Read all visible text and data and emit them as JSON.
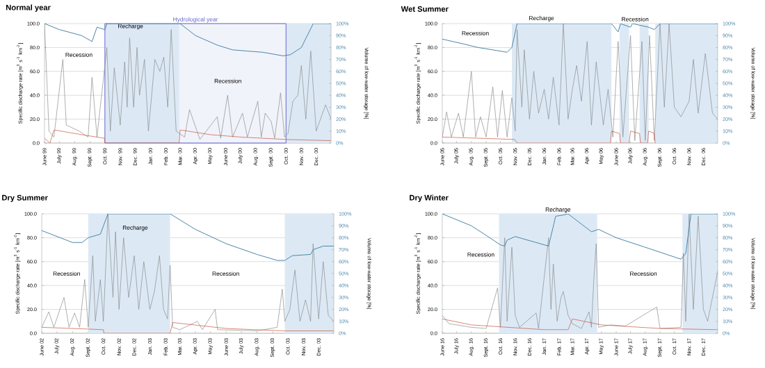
{
  "chart_data": [
    {
      "type": "line",
      "title": "Normal year",
      "ylabel": "Specific discharge rate [m$^{3}$ s$^{-1}$ km$^{-2}$]",
      "y2label": "Volume of low-water storage [%]",
      "xlim": [
        "1999-06-01",
        "2000-12-31"
      ],
      "xticks": [
        {
          "value": "1999-06-01",
          "label": "June 99"
        },
        {
          "value": "1999-07-01",
          "label": "July 99"
        },
        {
          "value": "1999-08-01",
          "label": "Aug. 99"
        },
        {
          "value": "1999-09-01",
          "label": "Sept. 99"
        },
        {
          "value": "1999-10-01",
          "label": "Oct. 99"
        },
        {
          "value": "1999-11-01",
          "label": "Nov. 99"
        },
        {
          "value": "1999-12-01",
          "label": "Dec. 99"
        },
        {
          "value": "2000-01-01",
          "label": "Jan. 00"
        },
        {
          "value": "2000-02-01",
          "label": "Feb. 00"
        },
        {
          "value": "2000-03-01",
          "label": "Mar. 00"
        },
        {
          "value": "2000-04-01",
          "label": "Apr. 00"
        },
        {
          "value": "2000-05-01",
          "label": "May 00"
        },
        {
          "value": "2000-06-01",
          "label": "June 00"
        },
        {
          "value": "2000-07-01",
          "label": "July 00"
        },
        {
          "value": "2000-08-01",
          "label": "Aug. 00"
        },
        {
          "value": "2000-09-01",
          "label": "Sept. 00"
        },
        {
          "value": "2000-10-01",
          "label": "Oct. 00"
        },
        {
          "value": "2000-11-01",
          "label": "Nov. 00"
        },
        {
          "value": "2000-12-01",
          "label": "Dec. 00"
        }
      ],
      "ylim": [
        0,
        100
      ],
      "yticks": [
        {
          "value": 0,
          "label": "0.0"
        },
        {
          "value": 20,
          "label": "20.0"
        },
        {
          "value": 40,
          "label": "40.0"
        },
        {
          "value": 60,
          "label": "60.0"
        },
        {
          "value": 80,
          "label": "80.0"
        },
        {
          "value": 100,
          "label": "100.0"
        }
      ],
      "y2lim": [
        0,
        100
      ],
      "y2ticks": [
        {
          "value": 0,
          "label": "0%"
        },
        {
          "value": 10,
          "label": "10%"
        },
        {
          "value": 20,
          "label": "20%"
        },
        {
          "value": 30,
          "label": "30%"
        },
        {
          "value": 40,
          "label": "40%"
        },
        {
          "value": 50,
          "label": "50%"
        },
        {
          "value": 60,
          "label": "60%"
        },
        {
          "value": 70,
          "label": "70%"
        },
        {
          "value": 80,
          "label": "80%"
        },
        {
          "value": 90,
          "label": "90%"
        },
        {
          "value": 100,
          "label": "100%"
        }
      ],
      "grid": "y",
      "bands": [
        {
          "axis": "x",
          "from": "1999-10-01",
          "to": "2000-02-28",
          "color": "#dce9f5"
        },
        {
          "axis": "x",
          "from": "2000-10-01",
          "to": "2000-12-31",
          "color": "#dce9f5"
        },
        {
          "axis": "x",
          "from": "1999-10-01",
          "to": "2000-10-01",
          "label": "Hydrological year",
          "color": "#f1f3fa"
        }
      ],
      "annotations": [
        "Recession",
        "Recharge",
        "Recession"
      ],
      "series": [
        {
          "color": "#8c8c8c",
          "x": [
            "1999-06-01",
            "1999-06-10",
            "1999-06-20",
            "1999-07-08",
            "1999-07-15",
            "1999-08-10",
            "1999-08-28",
            "1999-09-05",
            "1999-09-15",
            "1999-10-05",
            "1999-10-12",
            "1999-10-20",
            "1999-11-01",
            "1999-11-10",
            "1999-11-15",
            "1999-11-20",
            "1999-11-28",
            "1999-12-05",
            "1999-12-10",
            "1999-12-20",
            "1999-12-28",
            "2000-01-10",
            "2000-01-20",
            "2000-01-28",
            "2000-02-05",
            "2000-02-12",
            "2000-02-22",
            "2000-03-10",
            "2000-03-20",
            "2000-04-10",
            "2000-05-15",
            "2000-05-22",
            "2000-06-05",
            "2000-06-15",
            "2000-07-05",
            "2000-07-15",
            "2000-08-05",
            "2000-08-12",
            "2000-08-20",
            "2000-09-01",
            "2000-09-08",
            "2000-09-20",
            "2000-09-28",
            "2000-10-05",
            "2000-10-15",
            "2000-10-25",
            "2000-11-01",
            "2000-11-10",
            "2000-11-20",
            "2000-12-01",
            "2000-12-20",
            "2000-12-31"
          ],
          "values": [
            100,
            10,
            5,
            70,
            15,
            10,
            5,
            55,
            5,
            80,
            10,
            63,
            15,
            68,
            30,
            88,
            30,
            80,
            40,
            70,
            10,
            70,
            60,
            72,
            30,
            95,
            10,
            5,
            28,
            3,
            22,
            4,
            40,
            5,
            25,
            5,
            35,
            5,
            25,
            18,
            4,
            42,
            5,
            8,
            35,
            40,
            65,
            20,
            77,
            10,
            32,
            20
          ]
        },
        {
          "color": "#c8553d",
          "x": [
            "1999-06-01",
            "1999-06-12",
            "1999-06-20",
            "1999-08-15",
            "1999-09-30",
            "1999-10-01",
            "2000-02-28",
            "2000-03-01",
            "2000-05-01",
            "2000-07-01",
            "2000-09-30",
            "2000-12-31"
          ],
          "values": [
            4,
            0,
            11,
            7,
            4,
            0,
            0,
            11,
            7,
            5,
            3,
            2
          ]
        },
        {
          "color": "#4a86a8",
          "axis": "y2",
          "x": [
            "1999-06-01",
            "1999-07-01",
            "1999-08-15",
            "1999-09-05",
            "1999-09-15",
            "1999-10-01",
            "1999-10-05",
            "2000-03-01",
            "2000-04-01",
            "2000-05-15",
            "2000-06-15",
            "2000-07-15",
            "2000-08-15",
            "2000-09-25",
            "2000-10-10",
            "2000-11-01",
            "2000-11-25",
            "2000-12-31"
          ],
          "values": [
            100,
            95,
            90,
            85,
            97,
            95,
            100,
            100,
            90,
            82,
            78,
            77,
            76,
            73,
            74,
            80,
            100,
            100
          ]
        }
      ]
    },
    {
      "type": "line",
      "title": "Wet Summer",
      "ylabel": "Specific discharge rate [m$^{3}$ s$^{-1}$ km$^{-2}$]",
      "y2label": "Volume of low-water storage [%]",
      "xlim": [
        "2005-06-01",
        "2006-12-31"
      ],
      "xticks": [
        {
          "value": "2005-06-01",
          "label": "June 05"
        },
        {
          "value": "2005-07-01",
          "label": "July 05"
        },
        {
          "value": "2005-08-01",
          "label": "Aug. 05"
        },
        {
          "value": "2005-09-01",
          "label": "Sept. 05"
        },
        {
          "value": "2005-10-01",
          "label": "Oct. 05"
        },
        {
          "value": "2005-11-01",
          "label": "Nov. 05"
        },
        {
          "value": "2005-12-01",
          "label": "Dec. 05"
        },
        {
          "value": "2006-01-01",
          "label": "Jan. 06"
        },
        {
          "value": "2006-02-01",
          "label": "Feb. 06"
        },
        {
          "value": "2006-03-01",
          "label": "Mar. 06"
        },
        {
          "value": "2006-04-01",
          "label": "Apr. 06"
        },
        {
          "value": "2006-05-01",
          "label": "May 06"
        },
        {
          "value": "2006-06-01",
          "label": "June 06"
        },
        {
          "value": "2006-07-01",
          "label": "July 06"
        },
        {
          "value": "2006-08-01",
          "label": "Aug. 06"
        },
        {
          "value": "2006-09-01",
          "label": "Sept. 06"
        },
        {
          "value": "2006-10-01",
          "label": "Oct. 06"
        },
        {
          "value": "2006-11-01",
          "label": "Nov. 06"
        },
        {
          "value": "2006-12-01",
          "label": "Dec. 06"
        }
      ],
      "ylim": [
        0,
        100
      ],
      "yticks": [
        {
          "value": 0,
          "label": "0.0"
        },
        {
          "value": 20,
          "label": "20.0"
        },
        {
          "value": 40,
          "label": "40.0"
        },
        {
          "value": 60,
          "label": "60.0"
        },
        {
          "value": 80,
          "label": "80.0"
        },
        {
          "value": 100,
          "label": "100.0"
        }
      ],
      "y2lim": [
        0,
        100
      ],
      "y2ticks": [
        {
          "value": 0,
          "label": "0%"
        },
        {
          "value": 10,
          "label": "10%"
        },
        {
          "value": 20,
          "label": "20%"
        },
        {
          "value": 30,
          "label": "30%"
        },
        {
          "value": 40,
          "label": "40%"
        },
        {
          "value": 50,
          "label": "50%"
        },
        {
          "value": 60,
          "label": "60%"
        },
        {
          "value": 70,
          "label": "70%"
        },
        {
          "value": 80,
          "label": "80%"
        },
        {
          "value": 90,
          "label": "90%"
        },
        {
          "value": 100,
          "label": "100%"
        }
      ],
      "grid": "y",
      "bands": [
        {
          "axis": "x",
          "from": "2005-10-25",
          "to": "2006-05-22",
          "color": "#dce9f5"
        },
        {
          "axis": "x",
          "from": "2006-06-08",
          "to": "2006-06-28",
          "color": "#dce9f5"
        },
        {
          "axis": "x",
          "from": "2006-07-20",
          "to": "2006-08-08",
          "color": "#dce9f5"
        },
        {
          "axis": "x",
          "from": "2006-08-22",
          "to": "2006-12-31",
          "color": "#dce9f5"
        }
      ],
      "annotations": [
        "Recession",
        "Recharge",
        "Recession"
      ],
      "series": [
        {
          "color": "#8c8c8c",
          "x": [
            "2005-06-01",
            "2005-06-10",
            "2005-06-20",
            "2005-07-05",
            "2005-07-15",
            "2005-08-01",
            "2005-08-10",
            "2005-08-20",
            "2005-09-01",
            "2005-09-15",
            "2005-09-25",
            "2005-10-05",
            "2005-10-15",
            "2005-10-25",
            "2005-11-01",
            "2005-11-05",
            "2005-11-15",
            "2005-11-20",
            "2005-12-01",
            "2005-12-10",
            "2005-12-20",
            "2006-01-01",
            "2006-01-10",
            "2006-01-20",
            "2006-02-01",
            "2006-02-10",
            "2006-02-20",
            "2006-03-01",
            "2006-03-10",
            "2006-03-20",
            "2006-04-01",
            "2006-04-10",
            "2006-04-20",
            "2006-05-05",
            "2006-05-15",
            "2006-05-25",
            "2006-06-05",
            "2006-06-15",
            "2006-07-01",
            "2006-07-10",
            "2006-07-25",
            "2006-08-01",
            "2006-08-10",
            "2006-08-20",
            "2006-09-01",
            "2006-09-10",
            "2006-09-20",
            "2006-10-01",
            "2006-10-15",
            "2006-11-01",
            "2006-11-10",
            "2006-11-20",
            "2006-12-05",
            "2006-12-20",
            "2006-12-31"
          ],
          "values": [
            5,
            26,
            5,
            25,
            5,
            60,
            5,
            22,
            5,
            47,
            5,
            44,
            5,
            38,
            10,
            95,
            30,
            78,
            20,
            60,
            25,
            45,
            20,
            55,
            15,
            100,
            20,
            45,
            65,
            35,
            85,
            15,
            68,
            15,
            45,
            5,
            85,
            5,
            90,
            2,
            85,
            2,
            90,
            2,
            100,
            30,
            100,
            30,
            22,
            35,
            70,
            25,
            75,
            25,
            20
          ]
        },
        {
          "color": "#c8553d",
          "x": [
            "2005-06-01",
            "2005-10-31",
            "2005-11-05",
            "2006-05-20",
            "2006-05-22",
            "2006-06-08",
            "2006-06-10",
            "2006-06-28",
            "2006-07-01",
            "2006-07-20",
            "2006-07-22",
            "2006-08-06",
            "2006-08-08",
            "2006-08-20",
            "2006-08-22"
          ],
          "values": [
            5,
            3,
            0,
            0,
            10,
            8,
            0,
            0,
            10,
            8,
            0,
            0,
            10,
            8,
            0
          ]
        },
        {
          "color": "#4a86a8",
          "axis": "y2",
          "x": [
            "2005-06-01",
            "2005-07-15",
            "2005-08-15",
            "2005-09-15",
            "2005-10-15",
            "2005-10-25",
            "2005-11-05",
            "2006-05-22",
            "2006-06-05",
            "2006-06-10",
            "2006-07-01",
            "2006-07-05",
            "2006-08-08",
            "2006-08-20",
            "2006-09-01",
            "2006-12-31"
          ],
          "values": [
            87,
            83,
            80,
            78,
            76,
            80,
            100,
            100,
            93,
            100,
            97,
            100,
            97,
            95,
            100,
            100
          ]
        }
      ]
    },
    {
      "type": "line",
      "title": "Dry Summer",
      "ylabel": "Specific discharge rate [m$^{3}$ s$^{-1}$ km$^{-2}$]",
      "y2label": "Volume of low-water storage [%]",
      "xlim": [
        "2002-06-01",
        "2003-12-31"
      ],
      "xticks": [
        {
          "value": "2002-06-01",
          "label": "June 02"
        },
        {
          "value": "2002-07-01",
          "label": "July 02"
        },
        {
          "value": "2002-08-01",
          "label": "Aug. 02"
        },
        {
          "value": "2002-09-01",
          "label": "Sept. 02"
        },
        {
          "value": "2002-10-01",
          "label": "Oct. 02"
        },
        {
          "value": "2002-11-01",
          "label": "Nov. 02"
        },
        {
          "value": "2002-12-01",
          "label": "Dec. 02"
        },
        {
          "value": "2003-01-01",
          "label": "Jan. 03"
        },
        {
          "value": "2003-02-01",
          "label": "Feb. 03"
        },
        {
          "value": "2003-03-01",
          "label": "Mar. 03"
        },
        {
          "value": "2003-04-01",
          "label": "Apr. 03"
        },
        {
          "value": "2003-05-01",
          "label": "May 03"
        },
        {
          "value": "2003-06-01",
          "label": "June 03"
        },
        {
          "value": "2003-07-01",
          "label": "July 03"
        },
        {
          "value": "2003-08-01",
          "label": "Aug. 03"
        },
        {
          "value": "2003-09-01",
          "label": "Sept. 03"
        },
        {
          "value": "2003-10-01",
          "label": "Oct. 03"
        },
        {
          "value": "2003-11-01",
          "label": "Nov. 03"
        },
        {
          "value": "2003-12-01",
          "label": "Dec. 03"
        }
      ],
      "ylim": [
        0,
        100
      ],
      "yticks": [
        {
          "value": 0,
          "label": "0.0"
        },
        {
          "value": 20,
          "label": "20.0"
        },
        {
          "value": 40,
          "label": "40.0"
        },
        {
          "value": 60,
          "label": "60.0"
        },
        {
          "value": 80,
          "label": "80.0"
        },
        {
          "value": 100,
          "label": "100.0"
        }
      ],
      "y2lim": [
        0,
        100
      ],
      "y2ticks": [
        {
          "value": 0,
          "label": "0%"
        },
        {
          "value": 10,
          "label": "10%"
        },
        {
          "value": 20,
          "label": "20%"
        },
        {
          "value": 30,
          "label": "30%"
        },
        {
          "value": 40,
          "label": "40%"
        },
        {
          "value": 50,
          "label": "50%"
        },
        {
          "value": 60,
          "label": "60%"
        },
        {
          "value": 70,
          "label": "70%"
        },
        {
          "value": 80,
          "label": "80%"
        },
        {
          "value": 90,
          "label": "90%"
        },
        {
          "value": 100,
          "label": "100%"
        }
      ],
      "grid": "y",
      "bands": [
        {
          "axis": "x",
          "from": "2002-09-01",
          "to": "2003-02-10",
          "color": "#dce9f5"
        },
        {
          "axis": "x",
          "from": "2003-09-25",
          "to": "2003-12-31",
          "color": "#dce9f5"
        }
      ],
      "annotations": [
        "Recession",
        "Recharge",
        "Recession"
      ],
      "series": [
        {
          "color": "#8c8c8c",
          "x": [
            "2002-06-01",
            "2002-06-15",
            "2002-06-25",
            "2002-07-15",
            "2002-07-25",
            "2002-08-05",
            "2002-08-15",
            "2002-08-25",
            "2002-09-01",
            "2002-09-10",
            "2002-09-15",
            "2002-09-25",
            "2002-10-01",
            "2002-10-10",
            "2002-10-20",
            "2002-10-25",
            "2002-11-01",
            "2002-11-10",
            "2002-11-20",
            "2002-12-01",
            "2002-12-10",
            "2002-12-20",
            "2003-01-01",
            "2003-01-10",
            "2003-01-20",
            "2003-01-28",
            "2003-02-05",
            "2003-02-10",
            "2003-02-15",
            "2003-03-01",
            "2003-04-05",
            "2003-04-15",
            "2003-05-10",
            "2003-05-15",
            "2003-08-01",
            "2003-09-10",
            "2003-09-20",
            "2003-09-25",
            "2003-10-05",
            "2003-10-15",
            "2003-10-25",
            "2003-11-05",
            "2003-11-15",
            "2003-11-20",
            "2003-12-01",
            "2003-12-10",
            "2003-12-20",
            "2003-12-31"
          ],
          "values": [
            5,
            18,
            5,
            30,
            5,
            17,
            5,
            45,
            5,
            65,
            10,
            45,
            10,
            100,
            30,
            85,
            20,
            80,
            30,
            65,
            20,
            60,
            20,
            35,
            65,
            20,
            12,
            57,
            5,
            3,
            10,
            3,
            20,
            3,
            2,
            5,
            37,
            10,
            20,
            53,
            10,
            28,
            10,
            75,
            12,
            60,
            15,
            10
          ]
        },
        {
          "color": "#c8553d",
          "x": [
            "2002-06-01",
            "2002-10-01",
            "2002-10-02",
            "2003-02-10",
            "2003-02-15",
            "2003-06-01",
            "2003-09-25",
            "2003-12-31"
          ],
          "values": [
            5,
            3,
            0,
            0,
            9,
            4,
            2,
            2
          ]
        },
        {
          "color": "#4a86a8",
          "axis": "y2",
          "x": [
            "2002-06-01",
            "2002-08-01",
            "2002-08-20",
            "2002-09-01",
            "2002-09-25",
            "2002-10-10",
            "2003-02-10",
            "2003-04-01",
            "2003-06-01",
            "2003-08-01",
            "2003-09-10",
            "2003-09-25",
            "2003-10-10",
            "2003-11-15",
            "2003-11-20",
            "2003-12-10",
            "2003-12-31"
          ],
          "values": [
            86,
            76,
            76,
            80,
            83,
            100,
            100,
            87,
            75,
            66,
            61,
            61,
            65,
            66,
            70,
            73,
            73
          ]
        }
      ]
    },
    {
      "type": "line",
      "title": "Dry Winter",
      "ylabel": "Specific discharge rate [m$^{3}$ s$^{-1}$ km$^{-2}$]",
      "y2label": "Volume of low-water storage [%]",
      "xlim": [
        "2016-06-01",
        "2017-12-31"
      ],
      "xticks": [
        {
          "value": "2016-06-01",
          "label": "June 16"
        },
        {
          "value": "2016-07-01",
          "label": "July 16"
        },
        {
          "value": "2016-08-01",
          "label": "Aug. 16"
        },
        {
          "value": "2016-09-01",
          "label": "Sept. 16"
        },
        {
          "value": "2016-10-01",
          "label": "Oct. 16"
        },
        {
          "value": "2016-11-01",
          "label": "Nov. 16"
        },
        {
          "value": "2016-12-01",
          "label": "Dec. 16"
        },
        {
          "value": "2017-01-01",
          "label": "Jan. 17"
        },
        {
          "value": "2017-02-01",
          "label": "Feb. 17"
        },
        {
          "value": "2017-03-01",
          "label": "Mar. 17"
        },
        {
          "value": "2017-04-01",
          "label": "Apr. 17"
        },
        {
          "value": "2017-05-01",
          "label": "May 17"
        },
        {
          "value": "2017-06-01",
          "label": "June 17"
        },
        {
          "value": "2017-07-01",
          "label": "July 17"
        },
        {
          "value": "2017-08-01",
          "label": "Aug. 17"
        },
        {
          "value": "2017-09-01",
          "label": "Sept. 17"
        },
        {
          "value": "2017-10-01",
          "label": "Oct. 17"
        },
        {
          "value": "2017-11-01",
          "label": "Nov. 17"
        },
        {
          "value": "2017-12-01",
          "label": "Dec. 17"
        }
      ],
      "ylim": [
        0,
        100
      ],
      "yticks": [
        {
          "value": 0,
          "label": "0.0"
        },
        {
          "value": 20,
          "label": "20.0"
        },
        {
          "value": 40,
          "label": "40.0"
        },
        {
          "value": 60,
          "label": "60.0"
        },
        {
          "value": 80,
          "label": "80.0"
        },
        {
          "value": 100,
          "label": "100.0"
        }
      ],
      "y2lim": [
        0,
        100
      ],
      "y2ticks": [
        {
          "value": 0,
          "label": "0%"
        },
        {
          "value": 10,
          "label": "10%"
        },
        {
          "value": 20,
          "label": "20%"
        },
        {
          "value": 30,
          "label": "30%"
        },
        {
          "value": 40,
          "label": "40%"
        },
        {
          "value": 50,
          "label": "50%"
        },
        {
          "value": 60,
          "label": "60%"
        },
        {
          "value": 70,
          "label": "70%"
        },
        {
          "value": 80,
          "label": "80%"
        },
        {
          "value": 90,
          "label": "90%"
        },
        {
          "value": 100,
          "label": "100%"
        }
      ],
      "grid": "y",
      "bands": [
        {
          "axis": "x",
          "from": "2016-09-28",
          "to": "2017-04-22",
          "color": "#dce9f5"
        },
        {
          "axis": "x",
          "from": "2017-10-18",
          "to": "2017-12-31",
          "color": "#dce9f5"
        }
      ],
      "annotations": [
        "Recession",
        "Recharge",
        "Recession"
      ],
      "series": [
        {
          "color": "#8c8c8c",
          "x": [
            "2016-06-01",
            "2016-06-15",
            "2016-08-01",
            "2016-09-01",
            "2016-09-25",
            "2016-10-01",
            "2016-10-10",
            "2016-10-15",
            "2016-10-25",
            "2016-11-01",
            "2016-11-10",
            "2016-12-15",
            "2016-12-20",
            "2017-01-10",
            "2017-01-15",
            "2017-01-20",
            "2017-01-28",
            "2017-02-05",
            "2017-02-10",
            "2017-02-20",
            "2017-03-01",
            "2017-03-20",
            "2017-04-05",
            "2017-04-10",
            "2017-04-15",
            "2017-04-20",
            "2017-04-25",
            "2017-05-20",
            "2017-06-20",
            "2017-08-25",
            "2017-09-01",
            "2017-10-15",
            "2017-10-20",
            "2017-10-25",
            "2017-11-01",
            "2017-11-10",
            "2017-11-20",
            "2017-12-01",
            "2017-12-10",
            "2017-12-31"
          ],
          "values": [
            15,
            8,
            5,
            4,
            38,
            5,
            80,
            10,
            72,
            15,
            5,
            17,
            4,
            80,
            20,
            58,
            10,
            30,
            35,
            15,
            8,
            4,
            18,
            5,
            45,
            75,
            5,
            7,
            6,
            22,
            4,
            5,
            67,
            10,
            100,
            20,
            98,
            20,
            10,
            52
          ]
        },
        {
          "color": "#c8553d",
          "x": [
            "2016-06-01",
            "2016-08-01",
            "2017-01-01",
            "2017-02-20",
            "2017-03-01",
            "2017-05-01",
            "2017-09-01",
            "2017-12-31"
          ],
          "values": [
            12,
            7,
            3,
            3,
            12,
            7,
            4,
            3
          ]
        },
        {
          "color": "#4a86a8",
          "axis": "y2",
          "x": [
            "2016-06-01",
            "2016-08-01",
            "2016-09-01",
            "2016-10-01",
            "2016-10-10",
            "2016-10-15",
            "2016-11-01",
            "2017-01-10",
            "2017-01-25",
            "2017-02-10",
            "2017-02-20",
            "2017-04-10",
            "2017-04-25",
            "2017-06-01",
            "2017-08-01",
            "2017-10-15",
            "2017-10-25",
            "2017-11-05",
            "2017-12-31"
          ],
          "values": [
            100,
            90,
            82,
            74,
            73,
            78,
            81,
            73,
            98,
            99,
            100,
            85,
            87,
            80,
            72,
            62,
            67,
            100,
            100
          ]
        }
      ]
    }
  ]
}
